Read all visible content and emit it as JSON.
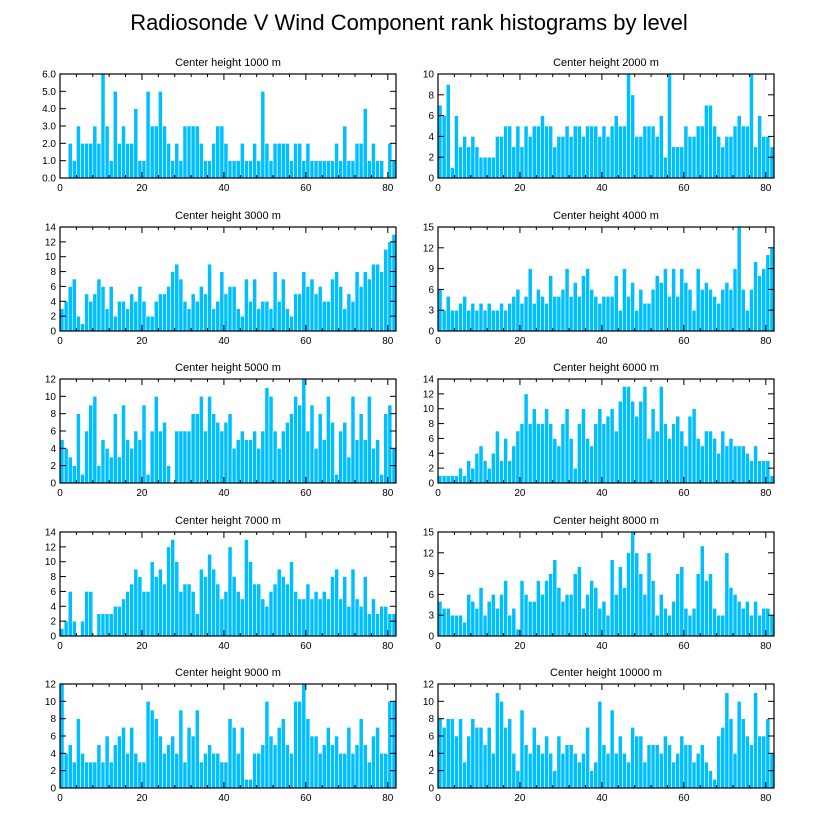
{
  "title": "Radiosonde V Wind Component rank histograms by level",
  "colors": {
    "bar": "#00bfff",
    "bar_edge": "#ffffff",
    "axis": "#000000"
  },
  "chart_data": [
    {
      "type": "bar",
      "title": "Center height 1000 m",
      "xlim": [
        0,
        82
      ],
      "xticks": [
        0,
        20,
        40,
        60,
        80
      ],
      "ylim": [
        0,
        6
      ],
      "yticks": [
        "0.0",
        "1.0",
        "2.0",
        "3.0",
        "4.0",
        "5.0",
        "6.0"
      ],
      "values": [
        0,
        0,
        2,
        1,
        3,
        2,
        2,
        2,
        3,
        2,
        6,
        3,
        1,
        5,
        2,
        3,
        2,
        2,
        4,
        1,
        1,
        5,
        3,
        3,
        5,
        3,
        2,
        1,
        2,
        1,
        3,
        3,
        3,
        3,
        2,
        1,
        1,
        2,
        3,
        3,
        2,
        1,
        1,
        1,
        2,
        1,
        1,
        2,
        1,
        5,
        2,
        1,
        2,
        2,
        2,
        2,
        1,
        2,
        2,
        1,
        2,
        1,
        1,
        1,
        1,
        1,
        1,
        2,
        1,
        3,
        1,
        1,
        2,
        2,
        4,
        1,
        2,
        1,
        1,
        0,
        2,
        1
      ]
    },
    {
      "type": "bar",
      "title": "Center height 2000 m",
      "xlim": [
        0,
        82
      ],
      "xticks": [
        0,
        20,
        40,
        60,
        80
      ],
      "ylim": [
        0,
        10
      ],
      "yticks": [
        "0",
        "2",
        "4",
        "6",
        "8",
        "10"
      ],
      "values": [
        7,
        6,
        9,
        1,
        6,
        3,
        4,
        3,
        4,
        3,
        2,
        2,
        2,
        2,
        4,
        4,
        5,
        5,
        3,
        5,
        3,
        5,
        4,
        5,
        5,
        6,
        5,
        5,
        3,
        4,
        4,
        5,
        4,
        5,
        5,
        4,
        5,
        5,
        5,
        4,
        5,
        4,
        5,
        6,
        5,
        5,
        10,
        8,
        4,
        4,
        5,
        5,
        5,
        4,
        6,
        2,
        10,
        3,
        3,
        3,
        5,
        4,
        4,
        5,
        5,
        7,
        7,
        5,
        4,
        3,
        4,
        4,
        5,
        6,
        5,
        5,
        10,
        3,
        6,
        4,
        4,
        3
      ]
    },
    {
      "type": "bar",
      "title": "Center height 3000 m",
      "xlim": [
        0,
        82
      ],
      "xticks": [
        0,
        20,
        40,
        60,
        80
      ],
      "ylim": [
        0,
        14
      ],
      "yticks": [
        "0",
        "2",
        "4",
        "6",
        "8",
        "10",
        "12",
        "14"
      ],
      "values": [
        3,
        4,
        6,
        7,
        2,
        1,
        5,
        4,
        5,
        7,
        6,
        3,
        6,
        2,
        4,
        4,
        3,
        5,
        4,
        6,
        4,
        2,
        2,
        4,
        5,
        5,
        6,
        8,
        9,
        7,
        4,
        3,
        5,
        4,
        6,
        5,
        9,
        3,
        4,
        8,
        5,
        6,
        6,
        3,
        2,
        7,
        4,
        7,
        3,
        4,
        4,
        3,
        8,
        4,
        7,
        3,
        2,
        5,
        5,
        8,
        6,
        7,
        5,
        6,
        4,
        4,
        7,
        8,
        6,
        3,
        5,
        4,
        8,
        6,
        8,
        7,
        9,
        9,
        8,
        11,
        12,
        13
      ]
    },
    {
      "type": "bar",
      "title": "Center height 4000 m",
      "xlim": [
        0,
        82
      ],
      "xticks": [
        0,
        20,
        40,
        60,
        80
      ],
      "ylim": [
        0,
        15
      ],
      "yticks": [
        "0",
        "3",
        "6",
        "9",
        "12",
        "15"
      ],
      "values": [
        6,
        3,
        5,
        3,
        3,
        4,
        5,
        3,
        4,
        3,
        4,
        3,
        4,
        3,
        3,
        4,
        3,
        4,
        5,
        6,
        4,
        5,
        9,
        4,
        6,
        5,
        4,
        8,
        5,
        5,
        6,
        9,
        5,
        7,
        5,
        8,
        9,
        6,
        5,
        4,
        5,
        5,
        5,
        8,
        3,
        9,
        5,
        7,
        3,
        6,
        4,
        4,
        6,
        8,
        7,
        9,
        5,
        9,
        5,
        9,
        7,
        6,
        3,
        9,
        6,
        7,
        6,
        5,
        4,
        6,
        7,
        6,
        9,
        15,
        6,
        3,
        6,
        10,
        8,
        9,
        11,
        12
      ]
    },
    {
      "type": "bar",
      "title": "Center height 5000 m",
      "xlim": [
        0,
        82
      ],
      "xticks": [
        0,
        20,
        40,
        60,
        80
      ],
      "ylim": [
        0,
        12
      ],
      "yticks": [
        "0",
        "2",
        "4",
        "6",
        "8",
        "10",
        "12"
      ],
      "values": [
        5,
        4,
        3,
        2,
        8,
        1,
        6,
        9,
        10,
        2,
        5,
        4,
        3,
        8,
        3,
        9,
        5,
        4,
        6,
        5,
        9,
        1,
        6,
        10,
        6,
        7,
        2,
        0,
        6,
        6,
        6,
        6,
        8,
        8,
        10,
        6,
        10,
        8,
        7,
        6,
        7,
        8,
        4,
        5,
        6,
        5,
        5,
        6,
        4,
        6,
        11,
        10,
        6,
        4,
        6,
        7,
        8,
        10,
        9,
        12,
        6,
        9,
        4,
        8,
        5,
        10,
        7,
        1,
        6,
        7,
        3,
        10,
        5,
        8,
        5,
        10,
        4,
        5,
        1,
        8,
        9,
        4
      ]
    },
    {
      "type": "bar",
      "title": "Center height 6000 m",
      "xlim": [
        0,
        82
      ],
      "xticks": [
        0,
        20,
        40,
        60,
        80
      ],
      "ylim": [
        0,
        14
      ],
      "yticks": [
        "0",
        "2",
        "4",
        "6",
        "8",
        "10",
        "12",
        "14"
      ],
      "values": [
        1,
        1,
        1,
        1,
        1,
        2,
        1,
        3,
        2,
        4,
        5,
        3,
        2,
        4,
        7,
        3,
        6,
        3,
        5,
        7,
        8,
        12,
        8,
        10,
        8,
        8,
        10,
        8,
        6,
        5,
        8,
        10,
        6,
        2,
        8,
        10,
        6,
        5,
        8,
        10,
        8,
        9,
        10,
        7,
        11,
        13,
        13,
        11,
        9,
        11,
        13,
        6,
        10,
        7,
        13,
        8,
        6,
        8,
        9,
        7,
        5,
        9,
        10,
        6,
        5,
        7,
        7,
        6,
        4,
        7,
        5,
        6,
        5,
        5,
        5,
        4,
        3,
        5,
        3,
        3,
        3,
        1
      ]
    },
    {
      "type": "bar",
      "title": "Center height 7000 m",
      "xlim": [
        0,
        82
      ],
      "xticks": [
        0,
        20,
        40,
        60,
        80
      ],
      "ylim": [
        0,
        14
      ],
      "yticks": [
        "0",
        "2",
        "4",
        "6",
        "8",
        "10",
        "12",
        "14"
      ],
      "values": [
        1,
        2,
        6,
        2,
        0,
        2,
        6,
        6,
        0,
        3,
        3,
        3,
        3,
        4,
        4,
        5,
        6,
        7,
        9,
        8,
        6,
        6,
        10,
        8,
        9,
        7,
        12,
        13,
        10,
        6,
        7,
        7,
        6,
        3,
        9,
        8,
        11,
        9,
        7,
        5,
        6,
        12,
        8,
        6,
        5,
        13,
        10,
        7,
        7,
        5,
        4,
        6,
        7,
        9,
        8,
        7,
        10,
        6,
        5,
        5,
        7,
        5,
        6,
        5,
        6,
        5,
        8,
        9,
        5,
        8,
        4,
        9,
        5,
        4,
        8,
        3,
        5,
        3,
        4,
        4,
        3,
        3
      ]
    },
    {
      "type": "bar",
      "title": "Center height 8000 m",
      "xlim": [
        0,
        82
      ],
      "xticks": [
        0,
        20,
        40,
        60,
        80
      ],
      "ylim": [
        0,
        15
      ],
      "yticks": [
        "0",
        "3",
        "6",
        "9",
        "12",
        "15"
      ],
      "values": [
        5,
        4,
        4,
        3,
        3,
        3,
        2,
        6,
        5,
        4,
        7,
        3,
        5,
        6,
        4,
        6,
        8,
        3,
        4,
        1,
        8,
        6,
        5,
        5,
        8,
        6,
        8,
        9,
        11,
        7,
        5,
        6,
        6,
        9,
        10,
        4,
        6,
        8,
        7,
        4,
        5,
        3,
        11,
        6,
        10,
        7,
        12,
        15,
        12,
        9,
        6,
        12,
        8,
        3,
        6,
        4,
        3,
        5,
        9,
        10,
        4,
        3,
        4,
        9,
        13,
        8,
        9,
        4,
        3,
        3,
        12,
        7,
        6,
        5,
        4,
        5,
        3,
        5,
        3,
        4,
        4,
        3
      ]
    },
    {
      "type": "bar",
      "title": "Center height 9000 m",
      "xlim": [
        0,
        82
      ],
      "xticks": [
        0,
        20,
        40,
        60,
        80
      ],
      "ylim": [
        0,
        12
      ],
      "yticks": [
        "0",
        "2",
        "4",
        "6",
        "8",
        "10",
        "12"
      ],
      "values": [
        12,
        4,
        5,
        3,
        8,
        4,
        3,
        3,
        3,
        5,
        3,
        6,
        3,
        5,
        6,
        7,
        4,
        7,
        4,
        3,
        3,
        10,
        9,
        8,
        6,
        4,
        5,
        6,
        4,
        9,
        3,
        7,
        6,
        9,
        3,
        4,
        5,
        4,
        4,
        3,
        3,
        8,
        7,
        4,
        7,
        1,
        1,
        4,
        4,
        5,
        10,
        6,
        5,
        7,
        8,
        5,
        4,
        10,
        10,
        12,
        8,
        6,
        6,
        4,
        5,
        7,
        5,
        6,
        4,
        4,
        7,
        4,
        5,
        8,
        5,
        3,
        6,
        7,
        4,
        4,
        10,
        10
      ]
    },
    {
      "type": "bar",
      "title": "Center height 10000 m",
      "xlim": [
        0,
        82
      ],
      "xticks": [
        0,
        20,
        40,
        60,
        80
      ],
      "ylim": [
        0,
        12
      ],
      "yticks": [
        "0",
        "2",
        "4",
        "6",
        "8",
        "10",
        "12"
      ],
      "values": [
        8,
        7,
        8,
        8,
        6,
        8,
        3,
        6,
        8,
        7,
        7,
        5,
        7,
        4,
        11,
        10,
        7,
        8,
        4,
        2,
        9,
        5,
        4,
        7,
        5,
        4,
        6,
        4,
        2,
        6,
        4,
        5,
        5,
        4,
        3,
        4,
        7,
        2,
        3,
        10,
        5,
        4,
        9,
        4,
        6,
        4,
        3,
        7,
        6,
        6,
        3,
        5,
        5,
        5,
        4,
        6,
        5,
        3,
        4,
        6,
        5,
        5,
        3,
        4,
        5,
        3,
        2,
        1,
        6,
        7,
        11,
        8,
        4,
        10,
        8,
        6,
        5,
        11,
        6,
        6,
        8,
        4
      ]
    }
  ]
}
